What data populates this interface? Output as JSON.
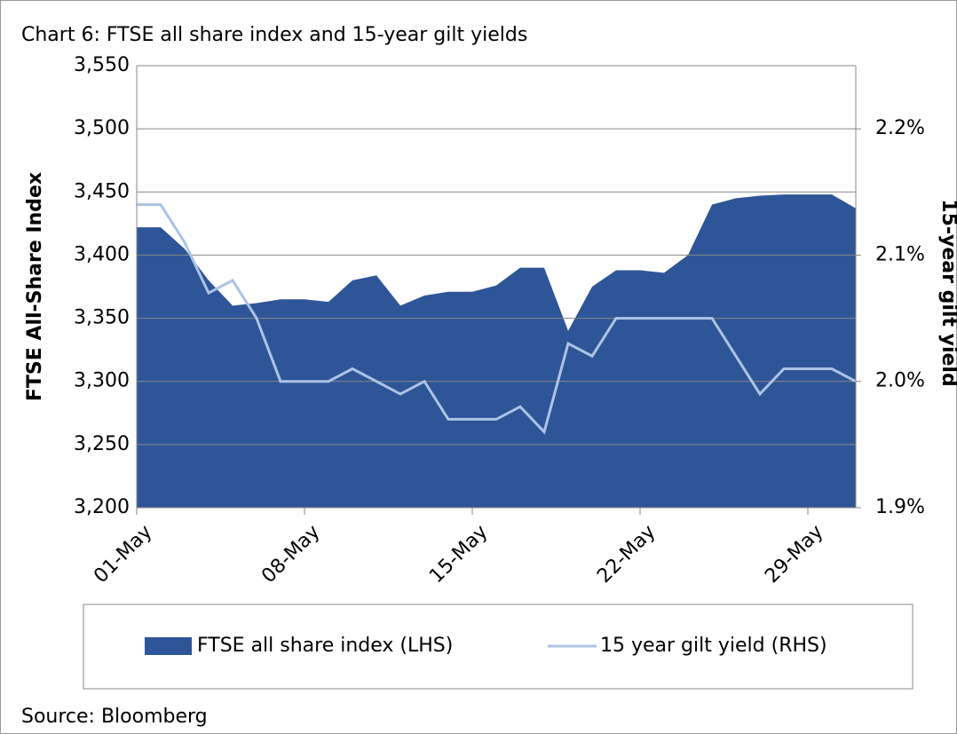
{
  "chart_data": {
    "type": "area-line",
    "title": "Chart 6: FTSE all share index and 15-year gilt yields",
    "y_label": "FTSE All-Share Index",
    "y2_label": "15-year gilt yield",
    "source": "Source: Bloomberg",
    "categories": [
      "01-May",
      null,
      null,
      null,
      null,
      null,
      null,
      "08-May",
      null,
      null,
      null,
      null,
      null,
      null,
      "15-May",
      null,
      null,
      null,
      null,
      null,
      null,
      "22-May",
      null,
      null,
      null,
      null,
      null,
      null,
      "29-May",
      null,
      null
    ],
    "ylim": [
      3200,
      3550
    ],
    "yticks": [
      {
        "value": 3200,
        "label": "3,200"
      },
      {
        "value": 3250,
        "label": "3,250"
      },
      {
        "value": 3300,
        "label": "3,300"
      },
      {
        "value": 3350,
        "label": "3,350"
      },
      {
        "value": 3400,
        "label": "3,400"
      },
      {
        "value": 3450,
        "label": "3,450"
      },
      {
        "value": 3500,
        "label": "3,500"
      },
      {
        "value": 3550,
        "label": "3,550"
      }
    ],
    "y2lim": [
      1.9,
      2.25
    ],
    "y2ticks": [
      {
        "value": 1.9,
        "label": "1.9%"
      },
      {
        "value": 2.0,
        "label": "2.0%"
      },
      {
        "value": 2.1,
        "label": "2.1%"
      },
      {
        "value": 2.2,
        "label": "2.2%"
      }
    ],
    "grid": true,
    "series": [
      {
        "name": "FTSE all share index (LHS)",
        "color": "#2e5597",
        "kind": "area",
        "values": [
          3422,
          3422,
          3405,
          3380,
          3360,
          3362,
          3365,
          3365,
          3363,
          3380,
          3384,
          3360,
          3368,
          3371,
          3371,
          3376,
          3390,
          3390,
          3340,
          3375,
          3388,
          3388,
          3386,
          3400,
          3440,
          3445,
          3447,
          3448,
          3448,
          3448,
          3437
        ]
      },
      {
        "name": "15 year gilt yield (RHS)",
        "color": "#adc3e6",
        "kind": "line",
        "axis": "y2",
        "values": [
          2.14,
          2.14,
          2.11,
          2.07,
          2.08,
          2.05,
          2.0,
          2.0,
          2.0,
          2.01,
          2.0,
          1.99,
          2.0,
          1.97,
          1.97,
          1.97,
          1.98,
          1.96,
          2.03,
          2.02,
          2.05,
          2.05,
          2.05,
          2.05,
          2.05,
          2.02,
          1.99,
          2.01,
          2.01,
          2.01,
          2.0
        ]
      }
    ]
  }
}
